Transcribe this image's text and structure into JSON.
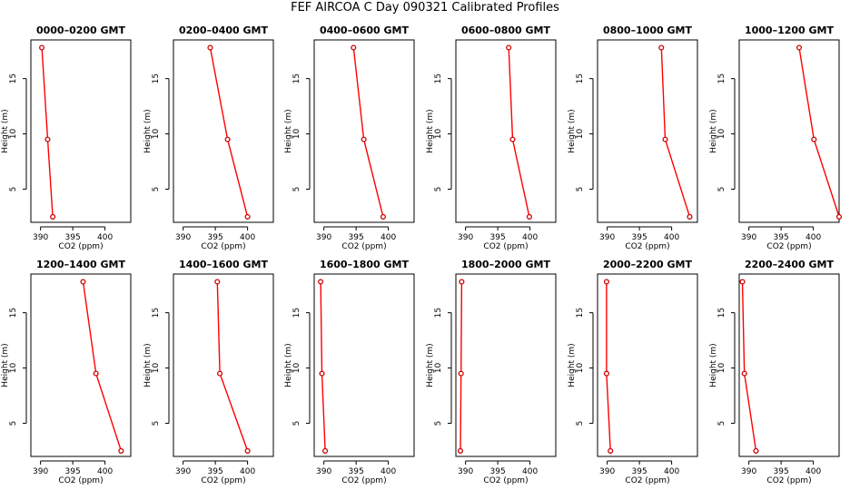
{
  "title": "FEF AIRCOA C  Day 090321  Calibrated Profiles",
  "style": {
    "line_color": "#ff0000",
    "point_color": "#cc0000"
  },
  "chart_data": [
    {
      "type": "line",
      "title": "0000–0200 GMT",
      "xlabel": "CO2 (ppm)",
      "ylabel": "Height (m)",
      "xlim": [
        388.5,
        404
      ],
      "ylim": [
        2,
        18.5
      ],
      "xticks": [
        390,
        395,
        400
      ],
      "yticks": [
        5,
        10,
        15
      ],
      "grid": false,
      "x": [
        390.2,
        391.1,
        391.9
      ],
      "y": [
        17.8,
        9.5,
        2.5
      ]
    },
    {
      "type": "line",
      "title": "0200–0400 GMT",
      "xlabel": "CO2 (ppm)",
      "ylabel": "Height (m)",
      "xlim": [
        388.5,
        404
      ],
      "ylim": [
        2,
        18.5
      ],
      "xticks": [
        390,
        395,
        400
      ],
      "yticks": [
        5,
        10,
        15
      ],
      "grid": false,
      "x": [
        394.2,
        396.9,
        400.0
      ],
      "y": [
        17.8,
        9.5,
        2.5
      ]
    },
    {
      "type": "line",
      "title": "0400–0600 GMT",
      "xlabel": "CO2 (ppm)",
      "ylabel": "Height (m)",
      "xlim": [
        388.5,
        404
      ],
      "ylim": [
        2,
        18.5
      ],
      "xticks": [
        390,
        395,
        400
      ],
      "yticks": [
        5,
        10,
        15
      ],
      "grid": false,
      "x": [
        394.6,
        396.2,
        399.2
      ],
      "y": [
        17.8,
        9.5,
        2.5
      ]
    },
    {
      "type": "line",
      "title": "0600–0800 GMT",
      "xlabel": "CO2 (ppm)",
      "ylabel": "Height (m)",
      "xlim": [
        388.5,
        404
      ],
      "ylim": [
        2,
        18.5
      ],
      "xticks": [
        390,
        395,
        400
      ],
      "yticks": [
        5,
        10,
        15
      ],
      "grid": false,
      "x": [
        396.7,
        397.3,
        399.9
      ],
      "y": [
        17.8,
        9.5,
        2.5
      ]
    },
    {
      "type": "line",
      "title": "0800–1000 GMT",
      "xlabel": "CO2 (ppm)",
      "ylabel": "Height (m)",
      "xlim": [
        388.5,
        404
      ],
      "ylim": [
        2,
        18.5
      ],
      "xticks": [
        390,
        395,
        400
      ],
      "yticks": [
        5,
        10,
        15
      ],
      "grid": false,
      "x": [
        398.4,
        399.0,
        402.8
      ],
      "y": [
        17.8,
        9.5,
        2.5
      ]
    },
    {
      "type": "line",
      "title": "1000–1200 GMT",
      "xlabel": "CO2 (ppm)",
      "ylabel": "Height (m)",
      "xlim": [
        388.5,
        404
      ],
      "ylim": [
        2,
        18.5
      ],
      "xticks": [
        390,
        395,
        400
      ],
      "yticks": [
        5,
        10,
        15
      ],
      "grid": false,
      "x": [
        397.8,
        400.1,
        404.0
      ],
      "y": [
        17.8,
        9.5,
        2.5
      ]
    },
    {
      "type": "line",
      "title": "1200–1400 GMT",
      "xlabel": "CO2 (ppm)",
      "ylabel": "Height (m)",
      "xlim": [
        388.5,
        404
      ],
      "ylim": [
        2,
        18.5
      ],
      "xticks": [
        390,
        395,
        400
      ],
      "yticks": [
        5,
        10,
        15
      ],
      "grid": false,
      "x": [
        396.6,
        398.6,
        402.5
      ],
      "y": [
        17.8,
        9.5,
        2.5
      ]
    },
    {
      "type": "line",
      "title": "1400–1600 GMT",
      "xlabel": "CO2 (ppm)",
      "ylabel": "Height (m)",
      "xlim": [
        388.5,
        404
      ],
      "ylim": [
        2,
        18.5
      ],
      "xticks": [
        390,
        395,
        400
      ],
      "yticks": [
        5,
        10,
        15
      ],
      "grid": false,
      "x": [
        395.3,
        395.7,
        400.0
      ],
      "y": [
        17.8,
        9.5,
        2.5
      ]
    },
    {
      "type": "line",
      "title": "1600–1800 GMT",
      "xlabel": "CO2 (ppm)",
      "ylabel": "Height (m)",
      "xlim": [
        388.5,
        404
      ],
      "ylim": [
        2,
        18.5
      ],
      "xticks": [
        390,
        395,
        400
      ],
      "yticks": [
        5,
        10,
        15
      ],
      "grid": false,
      "x": [
        389.5,
        389.7,
        390.2
      ],
      "y": [
        17.8,
        9.5,
        2.5
      ]
    },
    {
      "type": "line",
      "title": "1800–2000 GMT",
      "xlabel": "CO2 (ppm)",
      "ylabel": "Height (m)",
      "xlim": [
        388.5,
        404
      ],
      "ylim": [
        2,
        18.5
      ],
      "xticks": [
        390,
        395,
        400
      ],
      "yticks": [
        5,
        10,
        15
      ],
      "grid": false,
      "x": [
        389.4,
        389.3,
        389.2
      ],
      "y": [
        17.8,
        9.5,
        2.5
      ]
    },
    {
      "type": "line",
      "title": "2000–2200 GMT",
      "xlabel": "CO2 (ppm)",
      "ylabel": "Height (m)",
      "xlim": [
        388.5,
        404
      ],
      "ylim": [
        2,
        18.5
      ],
      "xticks": [
        390,
        395,
        400
      ],
      "yticks": [
        5,
        10,
        15
      ],
      "grid": false,
      "x": [
        389.9,
        389.9,
        390.5
      ],
      "y": [
        17.8,
        9.5,
        2.5
      ]
    },
    {
      "type": "line",
      "title": "2200–2400 GMT",
      "xlabel": "CO2 (ppm)",
      "ylabel": "Height (m)",
      "xlim": [
        388.5,
        404
      ],
      "ylim": [
        2,
        18.5
      ],
      "xticks": [
        390,
        395,
        400
      ],
      "yticks": [
        5,
        10,
        15
      ],
      "grid": false,
      "x": [
        389.0,
        389.3,
        391.1
      ],
      "y": [
        17.8,
        9.5,
        2.5
      ]
    }
  ]
}
